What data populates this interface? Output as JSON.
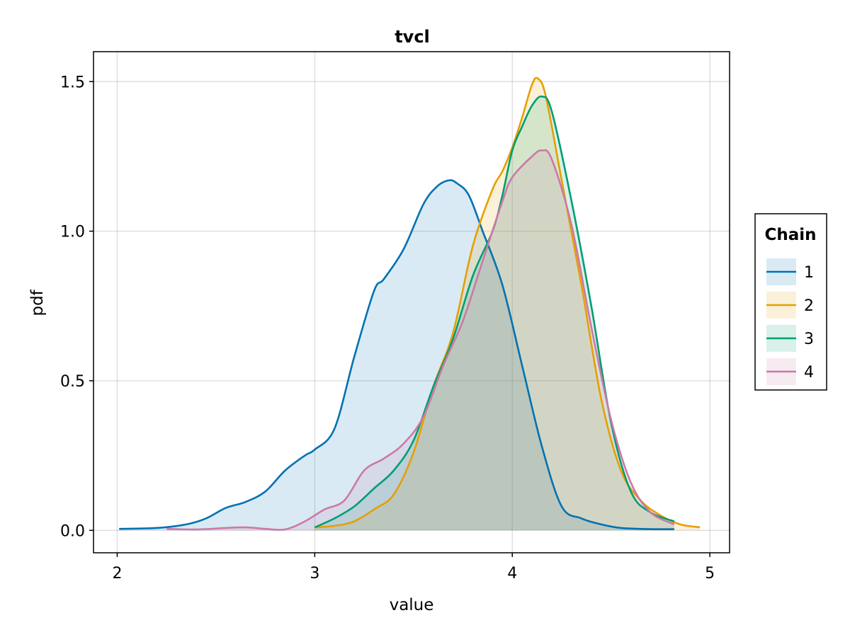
{
  "chart_data": {
    "type": "area",
    "title": "tvcl",
    "xlabel": "value",
    "ylabel": "pdf",
    "xlim": [
      1.88,
      5.1
    ],
    "ylim": [
      -0.075,
      1.6
    ],
    "xticks": [
      2,
      3,
      4,
      5
    ],
    "xtick_labels": [
      "2",
      "3",
      "4",
      "5"
    ],
    "yticks": [
      0,
      0.5,
      1.0,
      1.5
    ],
    "ytick_labels": [
      "0.0",
      "0.5",
      "1.0",
      "1.5"
    ],
    "grid": true,
    "legend": {
      "title": "Chain",
      "placement": "right"
    },
    "series": [
      {
        "name": "1",
        "color": "#0072b2",
        "x": [
          2.01,
          2.2,
          2.35,
          2.45,
          2.55,
          2.65,
          2.75,
          2.85,
          2.95,
          3.0,
          3.1,
          3.2,
          3.3,
          3.35,
          3.45,
          3.55,
          3.62,
          3.68,
          3.72,
          3.78,
          3.85,
          3.95,
          4.05,
          4.15,
          4.25,
          4.35,
          4.45,
          4.55,
          4.7,
          4.82
        ],
        "y": [
          0.005,
          0.008,
          0.02,
          0.04,
          0.075,
          0.095,
          0.13,
          0.2,
          0.25,
          0.27,
          0.34,
          0.58,
          0.8,
          0.84,
          0.94,
          1.09,
          1.15,
          1.17,
          1.16,
          1.12,
          1.0,
          0.82,
          0.55,
          0.28,
          0.08,
          0.04,
          0.02,
          0.008,
          0.004,
          0.004
        ]
      },
      {
        "name": "2",
        "color": "#e69f00",
        "x": [
          3.0,
          3.1,
          3.2,
          3.3,
          3.4,
          3.5,
          3.6,
          3.7,
          3.8,
          3.9,
          3.95,
          4.0,
          4.05,
          4.1,
          4.13,
          4.17,
          4.25,
          4.35,
          4.45,
          4.55,
          4.65,
          4.75,
          4.85,
          4.95
        ],
        "y": [
          0.01,
          0.015,
          0.03,
          0.07,
          0.12,
          0.26,
          0.48,
          0.66,
          0.95,
          1.14,
          1.2,
          1.28,
          1.38,
          1.49,
          1.51,
          1.45,
          1.17,
          0.82,
          0.44,
          0.2,
          0.1,
          0.05,
          0.02,
          0.01
        ]
      },
      {
        "name": "3",
        "color": "#009e73",
        "x": [
          3.0,
          3.1,
          3.2,
          3.3,
          3.4,
          3.5,
          3.6,
          3.7,
          3.8,
          3.9,
          3.95,
          4.0,
          4.05,
          4.1,
          4.15,
          4.2,
          4.3,
          4.4,
          4.5,
          4.6,
          4.7,
          4.82
        ],
        "y": [
          0.01,
          0.04,
          0.08,
          0.14,
          0.2,
          0.3,
          0.48,
          0.64,
          0.85,
          1.0,
          1.12,
          1.27,
          1.35,
          1.42,
          1.45,
          1.4,
          1.1,
          0.75,
          0.36,
          0.13,
          0.06,
          0.03
        ]
      },
      {
        "name": "4",
        "color": "#cc79a7",
        "x": [
          2.25,
          2.4,
          2.55,
          2.65,
          2.75,
          2.85,
          2.95,
          3.05,
          3.15,
          3.25,
          3.35,
          3.45,
          3.55,
          3.65,
          3.75,
          3.85,
          3.95,
          4.0,
          4.1,
          4.15,
          4.2,
          4.3,
          4.4,
          4.5,
          4.6,
          4.7,
          4.82
        ],
        "y": [
          0.005,
          0.003,
          0.008,
          0.01,
          0.005,
          0.003,
          0.03,
          0.07,
          0.1,
          0.2,
          0.24,
          0.29,
          0.38,
          0.55,
          0.7,
          0.9,
          1.1,
          1.18,
          1.25,
          1.27,
          1.24,
          1.02,
          0.68,
          0.37,
          0.16,
          0.06,
          0.02
        ]
      }
    ]
  }
}
